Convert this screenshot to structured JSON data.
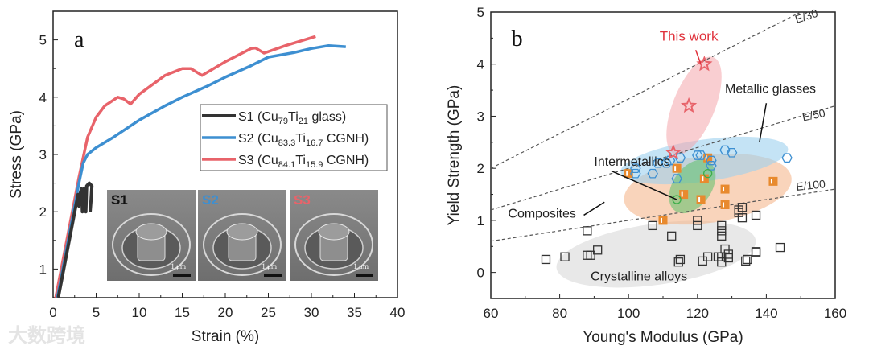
{
  "watermark": "大数跨境",
  "chart_data": [
    {
      "type": "line",
      "panel_label": "a",
      "xlabel": "Strain (%)",
      "ylabel": "Stress (GPa)",
      "xlim": [
        0,
        40
      ],
      "ylim": [
        0.5,
        5.5
      ],
      "xticks": [
        0,
        5,
        10,
        15,
        20,
        25,
        30,
        35,
        40
      ],
      "yticks": [
        1,
        2,
        3,
        4,
        5
      ],
      "legend_position": "center-right",
      "series": [
        {
          "name": "S1",
          "legend": "S1 (Cu79Ti21 glass)",
          "legend_parts": [
            "S1 (Cu",
            "79",
            "Ti",
            "21",
            " glass)"
          ],
          "color": "#333333",
          "x": [
            0.6,
            2.9,
            3.0,
            3.1,
            3.3,
            3.4,
            3.5,
            3.6,
            3.8,
            3.9,
            4.2,
            4.5,
            4.4,
            4.3
          ],
          "y": [
            0.5,
            2.3,
            2.1,
            2.3,
            2.4,
            2.0,
            2.3,
            2.4,
            2.0,
            2.45,
            2.5,
            2.45,
            2.2,
            2.0
          ]
        },
        {
          "name": "S2",
          "legend": "S2 (Cu83.3Ti16.7 CGNH)",
          "legend_parts": [
            "S2 (Cu",
            "83.3",
            "Ti",
            "16.7",
            " CGNH)"
          ],
          "color": "#3d8fd1",
          "x": [
            0.5,
            3.0,
            3.5,
            4.0,
            5.0,
            7.0,
            10,
            13,
            15,
            18,
            20,
            23,
            25,
            28,
            30,
            32,
            34
          ],
          "y": [
            0.5,
            2.5,
            2.85,
            3.0,
            3.12,
            3.3,
            3.6,
            3.85,
            4.0,
            4.2,
            4.35,
            4.55,
            4.7,
            4.78,
            4.85,
            4.9,
            4.88
          ]
        },
        {
          "name": "S3",
          "legend": "S3 (Cu84.1Ti15.9 CGNH)",
          "legend_parts": [
            "S3 (Cu",
            "84.1",
            "Ti",
            "15.9",
            " CGNH)"
          ],
          "color": "#e8636a",
          "x": [
            0.3,
            3.0,
            4.0,
            5.0,
            6.0,
            7.5,
            8.2,
            9.0,
            10,
            13,
            15,
            16,
            17.3,
            20,
            23,
            23.5,
            24.5,
            27,
            30.5
          ],
          "y": [
            0.5,
            2.6,
            3.3,
            3.65,
            3.85,
            4.0,
            3.97,
            3.88,
            4.05,
            4.38,
            4.5,
            4.5,
            4.38,
            4.62,
            4.85,
            4.86,
            4.77,
            4.9,
            5.06
          ]
        }
      ],
      "insets": [
        {
          "label": "S1",
          "color": "#111111",
          "scale_bar": "1 μm"
        },
        {
          "label": "S2",
          "color": "#3d8fd1",
          "scale_bar": "1 μm"
        },
        {
          "label": "S3",
          "color": "#e8636a",
          "scale_bar": "1 μm"
        }
      ]
    },
    {
      "type": "scatter",
      "panel_label": "b",
      "xlabel": "Young's Modulus (GPa)",
      "ylabel": "Yield Strength (GPa)",
      "xlim": [
        60,
        160
      ],
      "ylim": [
        -0.5,
        5
      ],
      "xticks": [
        60,
        80,
        100,
        120,
        140,
        160
      ],
      "yticks": [
        0,
        1,
        2,
        3,
        4,
        5
      ],
      "reference_lines": [
        {
          "label": "E/30",
          "divisor": 30
        },
        {
          "label": "E/50",
          "divisor": 50
        },
        {
          "label": "E/100",
          "divisor": 100
        }
      ],
      "series": [
        {
          "name": "This work",
          "marker": "star",
          "color": "#e8636a",
          "x": [
            113,
            117.5,
            122
          ],
          "y": [
            2.3,
            3.2,
            4.0
          ]
        },
        {
          "name": "Metallic glasses",
          "marker": "hexagon",
          "color": "#3d8fd1",
          "x": [
            102,
            102,
            107,
            108.5,
            111,
            112,
            114,
            115,
            120,
            121,
            124,
            124,
            128,
            130,
            146
          ],
          "y": [
            2.0,
            1.9,
            1.9,
            2.1,
            2.1,
            2.15,
            1.8,
            2.2,
            2.25,
            2.25,
            2.15,
            2.05,
            2.35,
            2.3,
            2.2
          ]
        },
        {
          "name": "Intermetallics",
          "marker": "circle",
          "color": "#3cae4a",
          "x": [
            114,
            123
          ],
          "y": [
            1.4,
            1.9
          ]
        },
        {
          "name": "Composites",
          "marker": "half-square",
          "color": "#e88a2e",
          "x": [
            100,
            110,
            114,
            116,
            121,
            122,
            123,
            128,
            128,
            142
          ],
          "y": [
            1.9,
            1.0,
            2.0,
            1.5,
            1.4,
            1.8,
            2.2,
            1.6,
            1.3,
            1.75
          ]
        },
        {
          "name": "Crystalline alloys",
          "marker": "square",
          "color": "#333333",
          "x": [
            76,
            81.5,
            88,
            88,
            89,
            91,
            107,
            112.5,
            114.5,
            115,
            120,
            120,
            121.5,
            123,
            126,
            127,
            127,
            127,
            127,
            127,
            128,
            129,
            129,
            132,
            132,
            133,
            133,
            134,
            134.5,
            137,
            137,
            137,
            144
          ],
          "y": [
            0.25,
            0.3,
            0.8,
            0.33,
            0.33,
            0.43,
            0.9,
            0.7,
            0.2,
            0.25,
            1.0,
            0.9,
            0.22,
            0.3,
            0.3,
            0.2,
            0.3,
            0.7,
            0.8,
            0.9,
            0.45,
            0.35,
            0.28,
            1.15,
            1.2,
            1.05,
            1.25,
            0.22,
            0.25,
            1.1,
            0.4,
            0.38,
            0.48
          ]
        }
      ],
      "annotations": {
        "this_work": "This work",
        "metallic_glasses": "Metallic glasses",
        "intermetallics": "Intermetallics",
        "composites": "Composites",
        "crystalline": "Crystalline alloys"
      }
    }
  ]
}
